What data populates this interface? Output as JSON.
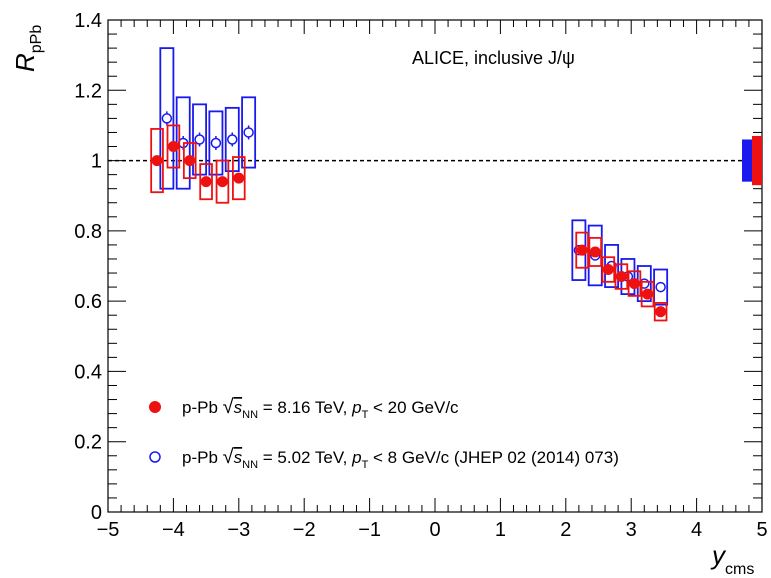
{
  "chart_data": {
    "type": "scatter",
    "annotation": "ALICE, inclusive J/ψ",
    "xlabel_main": "y",
    "xlabel_sub": "cms",
    "ylabel_main": "R",
    "ylabel_sub": "pPb",
    "xlim": [
      -5,
      5
    ],
    "ylim": [
      0,
      1.4
    ],
    "x_ticks": [
      -5,
      -4,
      -3,
      -2,
      -1,
      0,
      1,
      2,
      3,
      4,
      5
    ],
    "x_tick_labels": [
      "−5",
      "−4",
      "−3",
      "−2",
      "−1",
      "0",
      "1",
      "2",
      "3",
      "4",
      "5"
    ],
    "y_ticks": [
      0,
      0.2,
      0.4,
      0.6,
      0.8,
      1,
      1.2,
      1.4
    ],
    "y_tick_labels": [
      "0",
      "0.2",
      "0.4",
      "0.6",
      "0.8",
      "1",
      "1.2",
      "1.4"
    ],
    "reference_line": 1,
    "grid": false,
    "legend_position": "bottom-left",
    "series": [
      {
        "name": "p-Pb √sNN = 8.16 TeV, pT < 20 GeV/c",
        "legend": {
          "prefix": "p-Pb ",
          "energy": "= 8.16 TeV, ",
          "pt": "< 20 GeV/c"
        },
        "color": "#ee1111",
        "marker": "filled-circle",
        "points": [
          {
            "x": -4.25,
            "y": 1.0,
            "stat": 0.01,
            "syst": 0.09
          },
          {
            "x": -4.0,
            "y": 1.04,
            "stat": 0.01,
            "syst": 0.06
          },
          {
            "x": -3.75,
            "y": 1.0,
            "stat": 0.01,
            "syst": 0.05
          },
          {
            "x": -3.5,
            "y": 0.94,
            "stat": 0.01,
            "syst": 0.05
          },
          {
            "x": -3.25,
            "y": 0.94,
            "stat": 0.01,
            "syst": 0.06
          },
          {
            "x": -3.0,
            "y": 0.95,
            "stat": 0.01,
            "syst": 0.06
          },
          {
            "x": 2.25,
            "y": 0.745,
            "stat": 0.01,
            "syst": 0.05
          },
          {
            "x": 2.45,
            "y": 0.74,
            "stat": 0.01,
            "syst": 0.04
          },
          {
            "x": 2.65,
            "y": 0.69,
            "stat": 0.01,
            "syst": 0.035
          },
          {
            "x": 2.85,
            "y": 0.67,
            "stat": 0.01,
            "syst": 0.035
          },
          {
            "x": 3.05,
            "y": 0.65,
            "stat": 0.01,
            "syst": 0.035
          },
          {
            "x": 3.25,
            "y": 0.62,
            "stat": 0.01,
            "syst": 0.035
          },
          {
            "x": 3.45,
            "y": 0.57,
            "stat": 0.01,
            "syst": 0.025
          }
        ],
        "global_uncertainty": [
          0.93,
          1.07
        ]
      },
      {
        "name": "p-Pb √sNN = 5.02 TeV, pT < 8 GeV/c (JHEP 02 (2014) 073)",
        "legend": {
          "prefix": "p-Pb ",
          "energy": "= 5.02 TeV, ",
          "pt": "< 8 GeV/c (JHEP 02 (2014) 073)"
        },
        "color": "#1a1aee",
        "marker": "open-circle",
        "points": [
          {
            "x": -4.1,
            "y": 1.12,
            "stat": 0.02,
            "syst": 0.2
          },
          {
            "x": -3.85,
            "y": 1.05,
            "stat": 0.02,
            "syst": 0.13
          },
          {
            "x": -3.6,
            "y": 1.06,
            "stat": 0.02,
            "syst": 0.1
          },
          {
            "x": -3.35,
            "y": 1.05,
            "stat": 0.02,
            "syst": 0.09
          },
          {
            "x": -3.1,
            "y": 1.06,
            "stat": 0.02,
            "syst": 0.09
          },
          {
            "x": -2.85,
            "y": 1.08,
            "stat": 0.02,
            "syst": 0.1
          },
          {
            "x": 2.2,
            "y": 0.745,
            "stat": 0.01,
            "syst": 0.085
          },
          {
            "x": 2.45,
            "y": 0.73,
            "stat": 0.01,
            "syst": 0.085
          },
          {
            "x": 2.7,
            "y": 0.7,
            "stat": 0.01,
            "syst": 0.06
          },
          {
            "x": 2.95,
            "y": 0.67,
            "stat": 0.01,
            "syst": 0.05
          },
          {
            "x": 3.2,
            "y": 0.65,
            "stat": 0.01,
            "syst": 0.05
          },
          {
            "x": 3.45,
            "y": 0.64,
            "stat": 0.01,
            "syst": 0.05
          }
        ],
        "global_uncertainty": [
          0.94,
          1.06
        ]
      }
    ]
  }
}
